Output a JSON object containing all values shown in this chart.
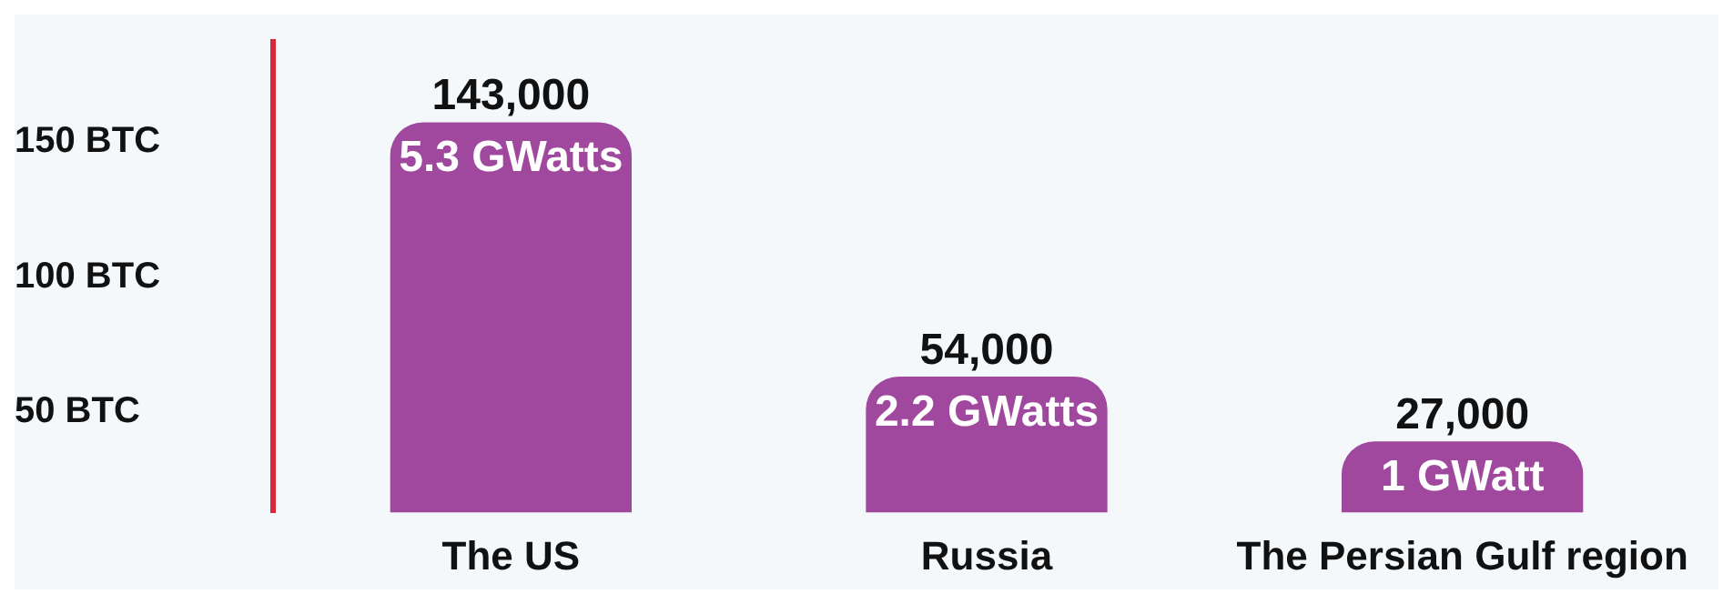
{
  "chart_data": {
    "type": "bar",
    "categories": [
      "The US",
      "Russia",
      "The Persian Gulf region"
    ],
    "values": [
      157,
      63,
      39
    ],
    "color": "#a0489e",
    "ylim": [
      13,
      187
    ],
    "yticks": [
      {
        "value": 50,
        "label": "50 BTC"
      },
      {
        "value": 100,
        "label": "100 BTC"
      },
      {
        "value": 150,
        "label": "150 BTC"
      }
    ],
    "annotations": [
      {
        "text": "143,000",
        "x": "The US",
        "y": 157
      },
      {
        "text": "54,000",
        "x": "Russia",
        "y": 63
      },
      {
        "text": "27,000",
        "x": "The Persian Gulf region",
        "y": 39
      },
      "5.3 GWatts",
      "2.2 GWatts",
      "1 GWatt"
    ],
    "grid": false,
    "legend": false
  }
}
